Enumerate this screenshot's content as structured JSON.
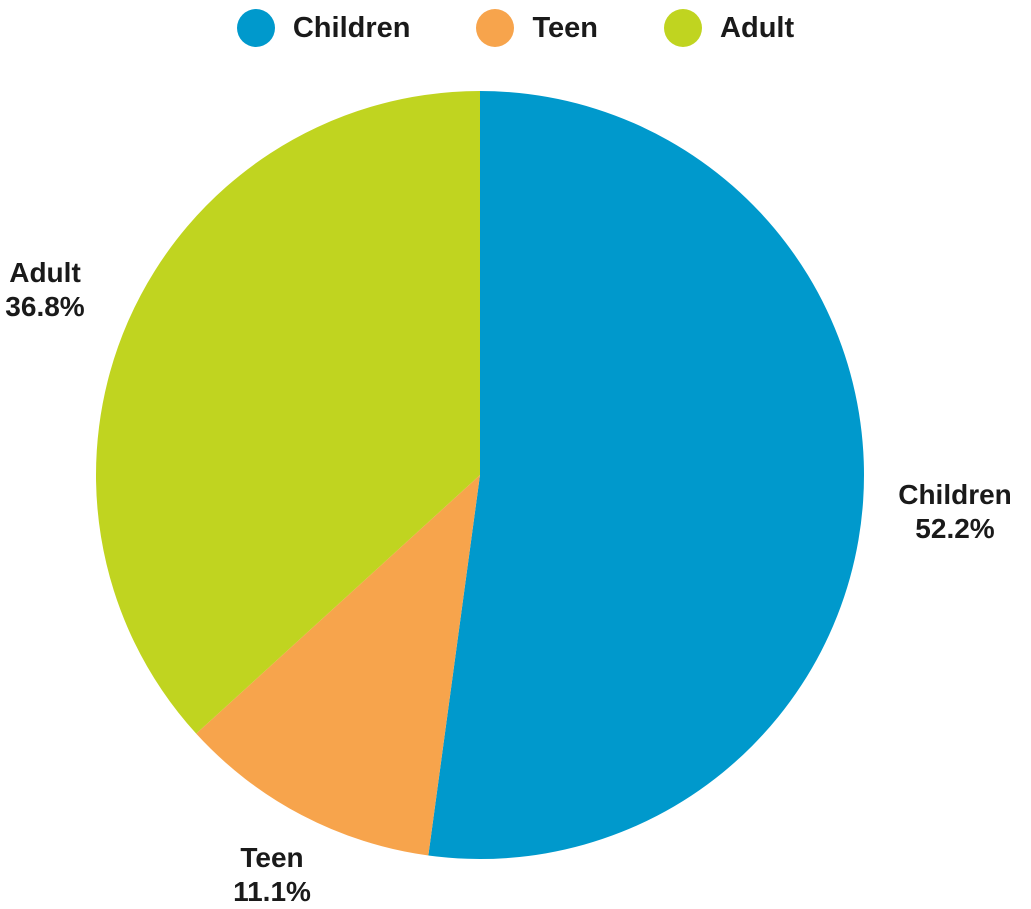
{
  "chart_data": {
    "type": "pie",
    "title": "",
    "legend_position": "top",
    "slices": [
      {
        "label": "Children",
        "value": 52.2,
        "value_label": "52.2%",
        "color": "#0099cc"
      },
      {
        "label": "Teen",
        "value": 11.1,
        "value_label": "11.1%",
        "color": "#f7a44c"
      },
      {
        "label": "Adult",
        "value": 36.8,
        "value_label": "36.8%",
        "color": "#c0d420"
      }
    ]
  }
}
